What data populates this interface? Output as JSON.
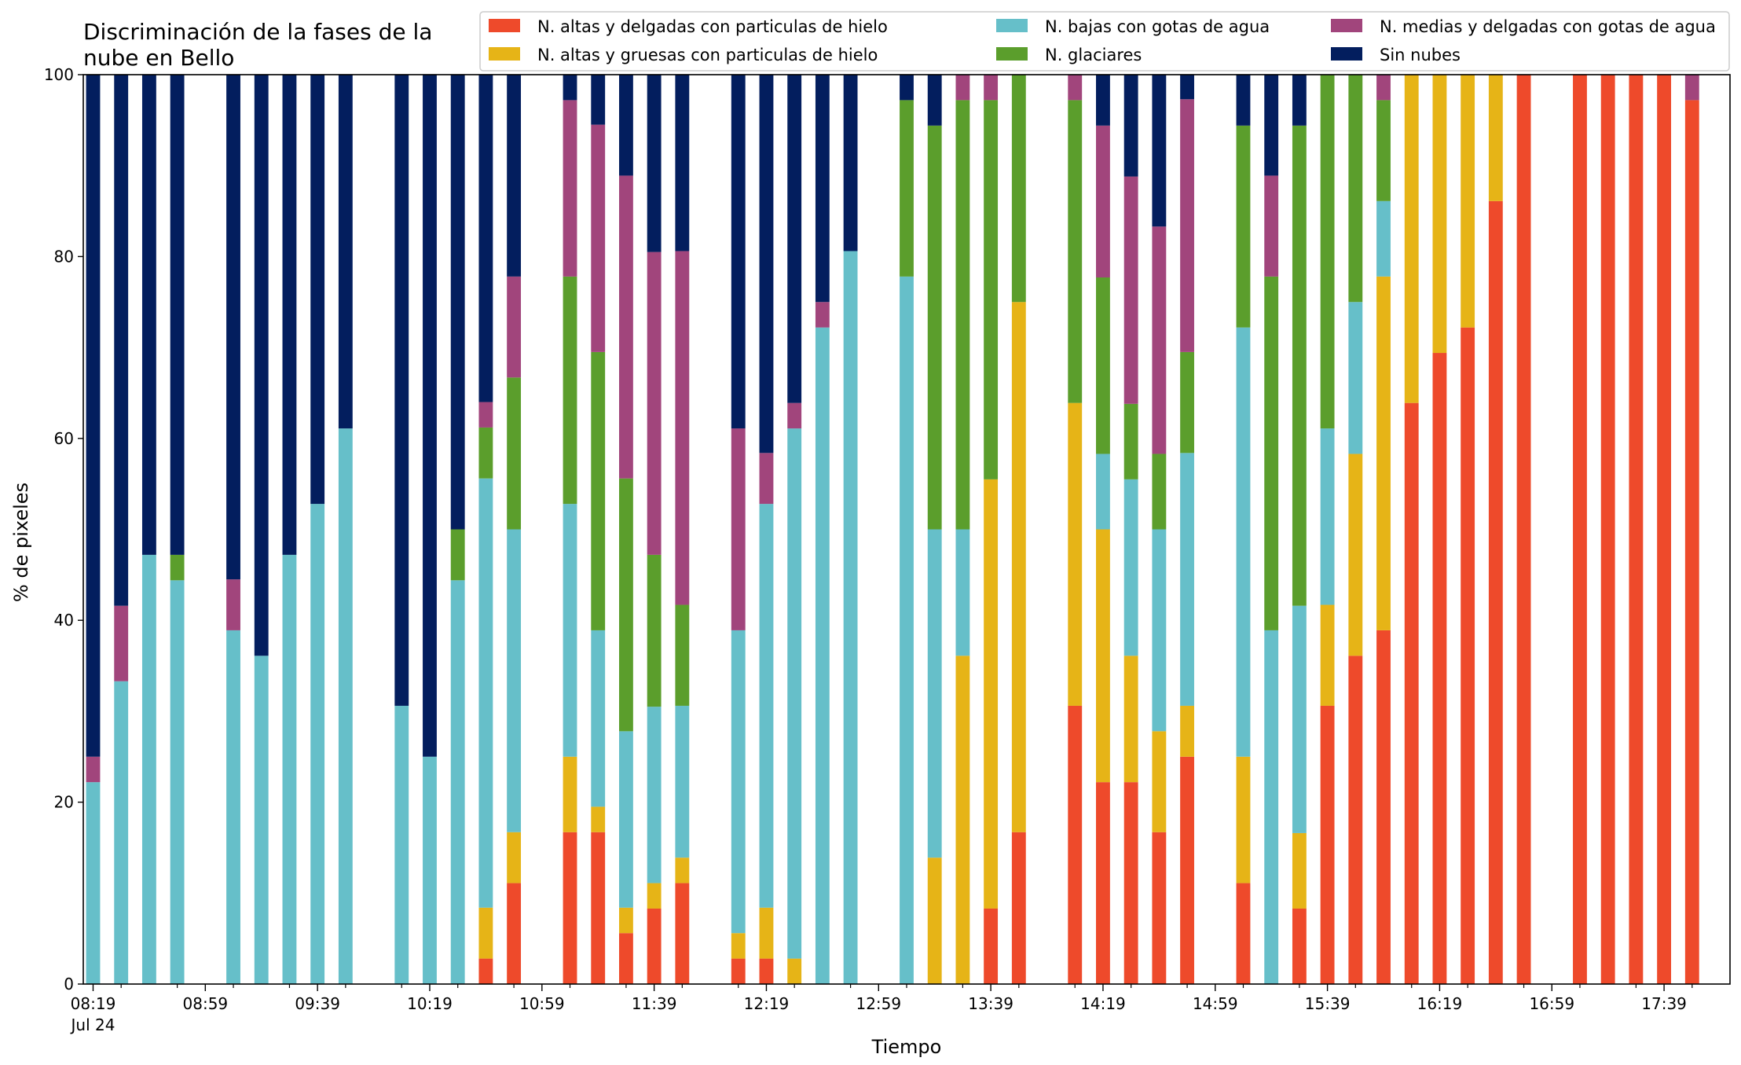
{
  "chart_data": {
    "type": "bar",
    "stacked": true,
    "title_line1": "Discriminación de la fases de la",
    "title_line2": "nube en Bello",
    "xlabel": "Tiempo",
    "ylabel": "% de pixeles",
    "ylim": [
      0,
      100
    ],
    "yticks": [
      "0",
      "20",
      "40",
      "60",
      "80",
      "100"
    ],
    "xlim_slots": [
      -0.35,
      58.35
    ],
    "xtick_labels": [
      "08:19",
      "08:59",
      "09:39",
      "10:19",
      "10:59",
      "11:39",
      "12:19",
      "12:59",
      "13:39",
      "14:19",
      "14:59",
      "15:39",
      "16:19",
      "16:59",
      "17:39"
    ],
    "xtick_date_label": "Jul 24",
    "x_interval_minutes": 10,
    "colors": {
      "altas_delgadas": "#ee4a2b",
      "altas_gruesas": "#e6b417",
      "bajas": "#66bfc9",
      "glaciares": "#5b9e2c",
      "medias": "#a1457c",
      "sin_nubes": "#031e5e"
    },
    "legend": [
      {
        "key": "altas_delgadas",
        "label": "N. altas y delgadas con particulas de hielo"
      },
      {
        "key": "altas_gruesas",
        "label": "N. altas y gruesas con particulas de hielo"
      },
      {
        "key": "bajas",
        "label": "N. bajas con gotas de agua"
      },
      {
        "key": "glaciares",
        "label": "N. glaciares"
      },
      {
        "key": "medias",
        "label": "N. medias y delgadas con gotas de agua"
      },
      {
        "key": "sin_nubes",
        "label": "Sin nubes"
      }
    ],
    "legend_placement": "top-right",
    "series_order": [
      "altas_delgadas",
      "altas_gruesas",
      "bajas",
      "glaciares",
      "medias",
      "sin_nubes"
    ],
    "times": [
      "08:19",
      "08:29",
      "08:39",
      "08:49",
      "08:59",
      "09:09",
      "09:19",
      "09:29",
      "09:39",
      "09:49",
      "09:59",
      "10:09",
      "10:19",
      "10:29",
      "10:39",
      "10:49",
      "10:59",
      "11:09",
      "11:19",
      "11:29",
      "11:39",
      "11:49",
      "11:59",
      "12:09",
      "12:19",
      "12:29",
      "12:39",
      "12:49",
      "12:59",
      "13:09",
      "13:19",
      "13:29",
      "13:39",
      "13:49",
      "13:59",
      "14:09",
      "14:19",
      "14:29",
      "14:39",
      "14:49",
      "14:59",
      "15:09",
      "15:19",
      "15:29",
      "15:39",
      "15:49",
      "15:59",
      "16:09",
      "16:19",
      "16:29",
      "16:39",
      "16:49",
      "16:59",
      "17:09",
      "17:19",
      "17:29",
      "17:39",
      "17:49"
    ],
    "bars": [
      {
        "slot": 0,
        "values": [
          0,
          0,
          22.2,
          0,
          2.8,
          75
        ]
      },
      {
        "slot": 1,
        "values": [
          0,
          0,
          33.3,
          0,
          8.3,
          58.4
        ]
      },
      {
        "slot": 2,
        "values": [
          0,
          0,
          47.2,
          0,
          0,
          52.8
        ]
      },
      {
        "slot": 3,
        "values": [
          0,
          0,
          44.4,
          2.8,
          0,
          52.8
        ]
      },
      {
        "slot": 5,
        "values": [
          0,
          0,
          38.9,
          0,
          5.6,
          55.5
        ]
      },
      {
        "slot": 6,
        "values": [
          0,
          0,
          36.1,
          0,
          0,
          63.9
        ]
      },
      {
        "slot": 7,
        "values": [
          0,
          0,
          47.2,
          0,
          0,
          52.8
        ]
      },
      {
        "slot": 8,
        "values": [
          0,
          0,
          52.8,
          0,
          0,
          47.2
        ]
      },
      {
        "slot": 9,
        "values": [
          0,
          0,
          61.1,
          0,
          0,
          38.9
        ]
      },
      {
        "slot": 11,
        "values": [
          0,
          0,
          30.6,
          0,
          0,
          69.4
        ]
      },
      {
        "slot": 12,
        "values": [
          0,
          0,
          25,
          0,
          0,
          75
        ]
      },
      {
        "slot": 13,
        "values": [
          0,
          0,
          44.4,
          5.6,
          0,
          50
        ]
      },
      {
        "slot": 14,
        "values": [
          2.8,
          5.6,
          47.2,
          5.6,
          2.8,
          36
        ]
      },
      {
        "slot": 15,
        "values": [
          11.1,
          5.6,
          33.3,
          16.7,
          11.1,
          22.2
        ]
      },
      {
        "slot": 17,
        "values": [
          16.7,
          8.3,
          27.8,
          25,
          19.4,
          2.8
        ]
      },
      {
        "slot": 18,
        "values": [
          16.7,
          2.8,
          19.4,
          30.6,
          25,
          5.5
        ]
      },
      {
        "slot": 19,
        "values": [
          5.6,
          2.8,
          19.4,
          27.8,
          33.3,
          11.1
        ]
      },
      {
        "slot": 20,
        "values": [
          8.3,
          2.8,
          19.4,
          16.7,
          33.3,
          19.5
        ]
      },
      {
        "slot": 21,
        "values": [
          11.1,
          2.8,
          16.7,
          11.1,
          38.9,
          19.4
        ]
      },
      {
        "slot": 23,
        "values": [
          2.8,
          2.8,
          33.3,
          0,
          22.2,
          38.9
        ]
      },
      {
        "slot": 24,
        "values": [
          2.8,
          5.6,
          44.4,
          0,
          5.6,
          41.6
        ]
      },
      {
        "slot": 25,
        "values": [
          0,
          2.8,
          58.3,
          0,
          2.8,
          36.1
        ]
      },
      {
        "slot": 26,
        "values": [
          0,
          0,
          72.2,
          0,
          2.8,
          25
        ]
      },
      {
        "slot": 27,
        "values": [
          0,
          0,
          80.6,
          0,
          0,
          19.4
        ]
      },
      {
        "slot": 29,
        "values": [
          0,
          0,
          77.8,
          19.4,
          0,
          2.8
        ]
      },
      {
        "slot": 30,
        "values": [
          0,
          13.9,
          36.1,
          44.4,
          0,
          5.6
        ]
      },
      {
        "slot": 31,
        "values": [
          0,
          36.1,
          13.9,
          47.2,
          2.8,
          0
        ]
      },
      {
        "slot": 32,
        "values": [
          8.3,
          47.2,
          0,
          41.7,
          2.8,
          0
        ]
      },
      {
        "slot": 33,
        "values": [
          16.7,
          58.3,
          0,
          25,
          0,
          0
        ]
      },
      {
        "slot": 35,
        "values": [
          30.6,
          33.3,
          0,
          33.3,
          2.8,
          0
        ]
      },
      {
        "slot": 36,
        "values": [
          22.2,
          27.8,
          8.3,
          19.4,
          16.7,
          5.6
        ]
      },
      {
        "slot": 37,
        "values": [
          22.2,
          13.9,
          19.4,
          8.3,
          25,
          11.2
        ]
      },
      {
        "slot": 38,
        "values": [
          16.7,
          11.1,
          22.2,
          8.3,
          25,
          16.7
        ]
      },
      {
        "slot": 39,
        "values": [
          25,
          5.6,
          27.8,
          11.1,
          27.8,
          2.7
        ]
      },
      {
        "slot": 41,
        "values": [
          11.1,
          13.9,
          47.2,
          22.2,
          0,
          5.6
        ]
      },
      {
        "slot": 42,
        "values": [
          0,
          0,
          38.9,
          38.9,
          11.1,
          11.1
        ]
      },
      {
        "slot": 43,
        "values": [
          8.3,
          8.3,
          25,
          52.8,
          0,
          5.6
        ]
      },
      {
        "slot": 44,
        "values": [
          30.6,
          11.1,
          19.4,
          38.9,
          0,
          0
        ]
      },
      {
        "slot": 45,
        "values": [
          36.1,
          22.2,
          16.7,
          25,
          0,
          0
        ]
      },
      {
        "slot": 46,
        "values": [
          38.9,
          38.9,
          8.3,
          11.1,
          2.8,
          0
        ]
      },
      {
        "slot": 47,
        "values": [
          63.9,
          36.1,
          0,
          0,
          0,
          0
        ]
      },
      {
        "slot": 48,
        "values": [
          69.4,
          30.6,
          0,
          0,
          0,
          0
        ]
      },
      {
        "slot": 49,
        "values": [
          72.2,
          27.8,
          0,
          0,
          0,
          0
        ]
      },
      {
        "slot": 50,
        "values": [
          86.1,
          13.9,
          0,
          0,
          0,
          0
        ]
      },
      {
        "slot": 51,
        "values": [
          100,
          0,
          0,
          0,
          0,
          0
        ]
      },
      {
        "slot": 53,
        "values": [
          100,
          0,
          0,
          0,
          0,
          0
        ]
      },
      {
        "slot": 54,
        "values": [
          100,
          0,
          0,
          0,
          0,
          0
        ]
      },
      {
        "slot": 55,
        "values": [
          100,
          0,
          0,
          0,
          0,
          0
        ]
      },
      {
        "slot": 56,
        "values": [
          100,
          0,
          0,
          0,
          0,
          0
        ]
      },
      {
        "slot": 57,
        "values": [
          97.2,
          0,
          0,
          0,
          2.8,
          0
        ]
      }
    ]
  }
}
